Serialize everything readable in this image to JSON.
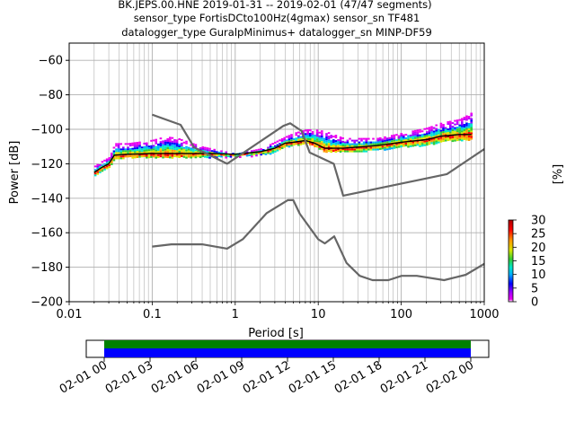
{
  "chart_data": {
    "type": "heatmap",
    "title_lines": [
      "BK.JEPS.00.HNE   2019-01-31 -- 2019-02-01  (47/47 segments)",
      "sensor_type FortisDCto100Hz(4gmax) sensor_sn TF481",
      "datalogger_type GuralpMinimus+ datalogger_sn MINP-DF59"
    ],
    "xlabel": "Period [s]",
    "ylabel": "Power [dB]",
    "x_scale": "log",
    "xlim": [
      0.01,
      1000
    ],
    "ylim": [
      -200,
      -50
    ],
    "x_tick_labels": [
      "0.01",
      "0.1",
      "1",
      "10",
      "100",
      "1000"
    ],
    "y_tick_labels": [
      "−60",
      "−80",
      "−100",
      "−120",
      "−140",
      "−160",
      "−180",
      "−200"
    ],
    "y_ticks": [
      -60,
      -80,
      -100,
      -120,
      -140,
      -160,
      -180,
      -200
    ],
    "grid": true,
    "colorbar": {
      "label": "[%]",
      "range": [
        0,
        30
      ],
      "tick_labels": [
        "0",
        "5",
        "10",
        "15",
        "20",
        "25",
        "30"
      ],
      "colors": [
        "#ffffff",
        "#ee00ee",
        "#9900ff",
        "#0000ff",
        "#00aaff",
        "#00e5c8",
        "#33cc33",
        "#d8e600",
        "#ff9900",
        "#ff0000",
        "#aa0000"
      ]
    },
    "noise_model_high": {
      "period": [
        0.1,
        0.22,
        0.32,
        0.8,
        3.8,
        4.6,
        6.3,
        7.9,
        15.4,
        20,
        354.8,
        1000
      ],
      "power": [
        -91.5,
        -97.4,
        -110.5,
        -120,
        -98,
        -96.5,
        -101,
        -113.5,
        -120,
        -138.5,
        -126,
        -111.5
      ]
    },
    "noise_model_low": {
      "period": [
        0.1,
        0.17,
        0.4,
        0.8,
        1.24,
        2.4,
        4.3,
        5.0,
        6.0,
        10.0,
        12.0,
        15.6,
        21.9,
        31.6,
        45,
        70,
        101,
        154,
        328,
        600,
        1000
      ],
      "power": [
        -168,
        -166.7,
        -166.7,
        -169.2,
        -163.7,
        -148.6,
        -141.1,
        -141.1,
        -149,
        -163.8,
        -166.2,
        -162.1,
        -177.5,
        -185,
        -187.5,
        -187.5,
        -185,
        -185,
        -187.5,
        -184.4,
        -178
      ]
    },
    "mode_curve": {
      "period": [
        0.02,
        0.025,
        0.03,
        0.035,
        0.05,
        0.1,
        0.2,
        0.5,
        1.0,
        2.0,
        3.0,
        4.0,
        5.0,
        7.0,
        9.0,
        12.0,
        20.0,
        50.0,
        100.0,
        200.0,
        300.0,
        500.0,
        700.0
      ],
      "power": [
        -125,
        -122,
        -120,
        -115,
        -114.5,
        -114,
        -114,
        -114,
        -114.5,
        -113,
        -111,
        -108,
        -107.5,
        -106.5,
        -108,
        -111,
        -111,
        -109.5,
        -107.5,
        -106,
        -104,
        -103,
        -103
      ]
    },
    "psd_band_upper": {
      "period": [
        0.02,
        0.025,
        0.03,
        0.035,
        0.05,
        0.1,
        0.14,
        0.2,
        0.4,
        1.0,
        2.0,
        3.0,
        4.0,
        5.0,
        7.0,
        9.0,
        12.0,
        20.0,
        50.0,
        100.0,
        200.0,
        300.0,
        500.0,
        700.0
      ],
      "power": [
        -121,
        -118,
        -116,
        -108,
        -108,
        -106,
        -104,
        -105,
        -110,
        -114,
        -111,
        -107,
        -104,
        -102,
        -100,
        -100,
        -101,
        -105,
        -105,
        -102,
        -99,
        -96,
        -94,
        -90
      ]
    },
    "psd_band_lower": {
      "period": [
        0.02,
        0.025,
        0.03,
        0.035,
        0.05,
        0.1,
        0.2,
        0.5,
        1.0,
        2.0,
        3.0,
        4.0,
        5.0,
        7.0,
        9.0,
        12.0,
        20.0,
        50.0,
        100.0,
        200.0,
        300.0,
        500.0,
        700.0
      ],
      "power": [
        -127,
        -124,
        -122,
        -117,
        -116,
        -116,
        -116,
        -116,
        -116,
        -115,
        -113,
        -110,
        -109,
        -108,
        -110,
        -113,
        -113,
        -112,
        -110,
        -109,
        -107,
        -106,
        -106
      ]
    },
    "timeline": {
      "tick_labels": [
        "02-01 00",
        "02-01 03",
        "02-01 06",
        "02-01 09",
        "02-01 12",
        "02-01 15",
        "02-01 18",
        "02-01 21",
        "02-02 00"
      ],
      "coverage_colors": [
        "#008000",
        "#0000ff"
      ],
      "coverage_start_hour": 0,
      "coverage_end_hour": 24
    }
  }
}
